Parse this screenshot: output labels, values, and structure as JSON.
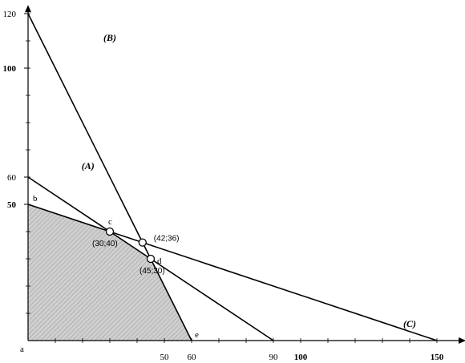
{
  "chart_data": {
    "type": "line",
    "title": "",
    "xlabel": "",
    "ylabel": "",
    "xlim": [
      0,
      160
    ],
    "ylim": [
      0,
      122
    ],
    "x_ticks": [
      {
        "value": 50,
        "label": "50",
        "bold": false
      },
      {
        "value": 60,
        "label": "60",
        "bold": false
      },
      {
        "value": 90,
        "label": "90",
        "bold": false
      },
      {
        "value": 100,
        "label": "100",
        "bold": true
      },
      {
        "value": 150,
        "label": "150",
        "bold": true
      }
    ],
    "y_ticks": [
      {
        "value": 50,
        "label": "50",
        "bold": true
      },
      {
        "value": 60,
        "label": "60",
        "bold": false
      },
      {
        "value": 100,
        "label": "100",
        "bold": true
      },
      {
        "value": 120,
        "label": "120",
        "bold": false
      }
    ],
    "lines": [
      {
        "name": "(A)",
        "from": [
          0,
          60
        ],
        "to": [
          90,
          0
        ]
      },
      {
        "name": "(B)",
        "from": [
          0,
          120
        ],
        "to": [
          60,
          0
        ]
      },
      {
        "name": "(C)",
        "from": [
          0,
          50
        ],
        "to": [
          150,
          0
        ]
      }
    ],
    "feasible_region": [
      [
        0,
        0
      ],
      [
        0,
        50
      ],
      [
        30,
        40
      ],
      [
        45,
        30
      ],
      [
        60,
        0
      ]
    ],
    "intersections": [
      {
        "label": "(30;40)",
        "x": 30,
        "y": 40
      },
      {
        "label": "(42;36)",
        "x": 42,
        "y": 36
      },
      {
        "label": "(45;30)",
        "x": 45,
        "y": 30
      }
    ],
    "vertices": [
      {
        "label": "a",
        "x": 0,
        "y": 0
      },
      {
        "label": "b",
        "x": 0,
        "y": 50
      },
      {
        "label": "c",
        "x": 30,
        "y": 40
      },
      {
        "label": "d",
        "x": 45,
        "y": 30
      },
      {
        "label": "e",
        "x": 60,
        "y": 0
      }
    ],
    "colors": {
      "region": "#c8c8c8",
      "axis": "#000000",
      "line": "#000000"
    }
  }
}
